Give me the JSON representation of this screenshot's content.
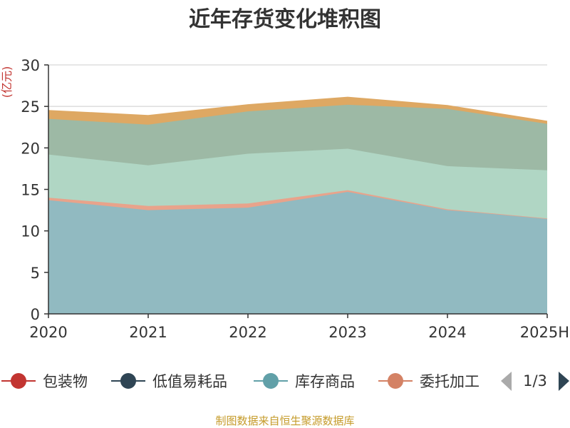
{
  "chart_data": {
    "type": "area",
    "stacked": true,
    "title": "近年存货变化堆积图",
    "unit_label": "(亿元)",
    "categories": [
      "2020",
      "2021",
      "2022",
      "2023",
      "2024",
      "2025H"
    ],
    "ylim": [
      0,
      30
    ],
    "yticks": [
      "0",
      "5",
      "10",
      "15",
      "20",
      "25",
      "30"
    ],
    "grid": true,
    "series_drawn": [
      {
        "key": "s1",
        "color": "#91bac1",
        "values": [
          13.7,
          12.5,
          12.8,
          14.7,
          12.5,
          11.5
        ]
      },
      {
        "key": "s2",
        "color": "#e8a38b",
        "values": [
          0.3,
          0.5,
          0.5,
          0.2,
          0.1,
          0.0
        ]
      },
      {
        "key": "s3",
        "color": "#b0d6c4",
        "values": [
          5.2,
          4.9,
          6.0,
          5.0,
          5.2,
          5.8
        ]
      },
      {
        "key": "s4",
        "color": "#9db9a5",
        "values": [
          4.3,
          4.9,
          5.1,
          5.3,
          6.9,
          5.6
        ]
      },
      {
        "key": "s5",
        "color": "#dea863",
        "values": [
          1.0,
          1.1,
          0.8,
          0.9,
          0.4,
          0.3
        ]
      }
    ],
    "legend_position": "bottom",
    "legend": [
      {
        "name": "包装物",
        "color": "#c23531"
      },
      {
        "name": "低值易耗品",
        "color": "#2f4554"
      },
      {
        "name": "库存商品",
        "color": "#61a0a8"
      },
      {
        "name": "委托加工",
        "color": "#d48265"
      }
    ],
    "legend_page": "1/3"
  },
  "footer": "制图数据来自恒生聚源数据库"
}
